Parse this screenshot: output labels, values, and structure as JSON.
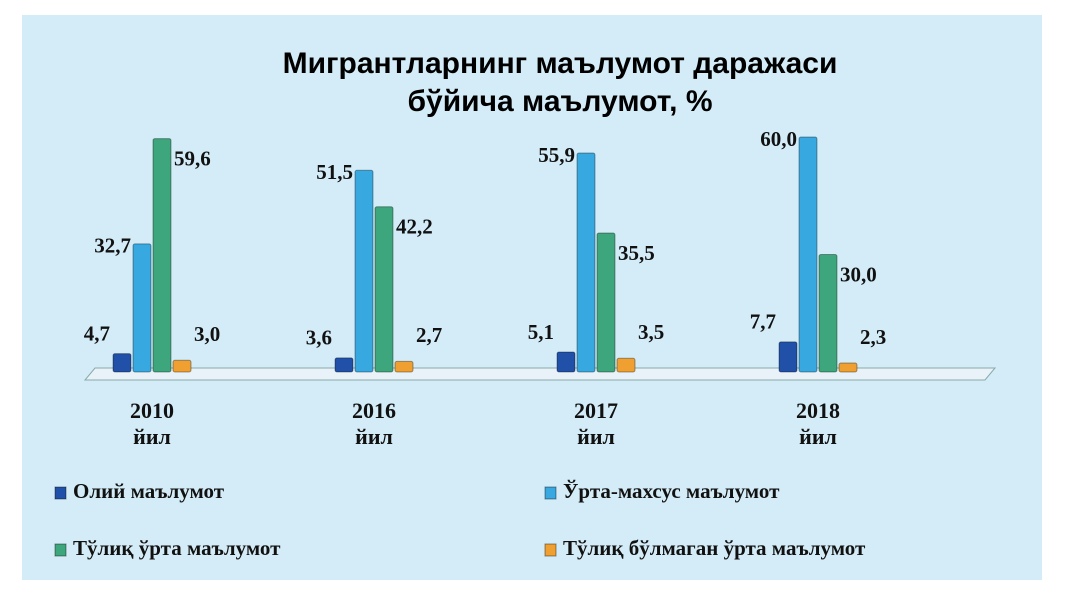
{
  "chart_data": {
    "type": "bar",
    "title": "Мигрантларнинг маълумот даражаси",
    "subtitle": "бўйича маълумот, %",
    "categories": [
      "2010 йил",
      "2016 йил",
      "2017 йил",
      "2018 йил"
    ],
    "series": [
      {
        "name": "Олий маълумот",
        "color": "#2050a8",
        "values": [
          4.7,
          3.6,
          5.1,
          7.7
        ],
        "value_labels": [
          "4,7",
          "3,6",
          "5,1",
          "7,7"
        ]
      },
      {
        "name": "Ўрта-махсус маълумот",
        "color": "#38a8e0",
        "values": [
          32.7,
          51.5,
          55.9,
          60.0
        ],
        "value_labels": [
          "32,7",
          "51,5",
          "55,9",
          "60,0"
        ]
      },
      {
        "name": "Тўлиқ ўрта маълумот",
        "color": "#3ea67c",
        "values": [
          59.6,
          42.2,
          35.5,
          30.0
        ],
        "value_labels": [
          "59,6",
          "42,2",
          "35,5",
          "30,0"
        ]
      },
      {
        "name": "Тўлиқ бўлмаган ўрта маълумот",
        "color": "#f0a030",
        "values": [
          3.0,
          2.7,
          3.5,
          2.3
        ],
        "value_labels": [
          "3,0",
          "2,7",
          "3,5",
          "2,3"
        ]
      }
    ],
    "ylim": [
      0,
      60
    ]
  }
}
